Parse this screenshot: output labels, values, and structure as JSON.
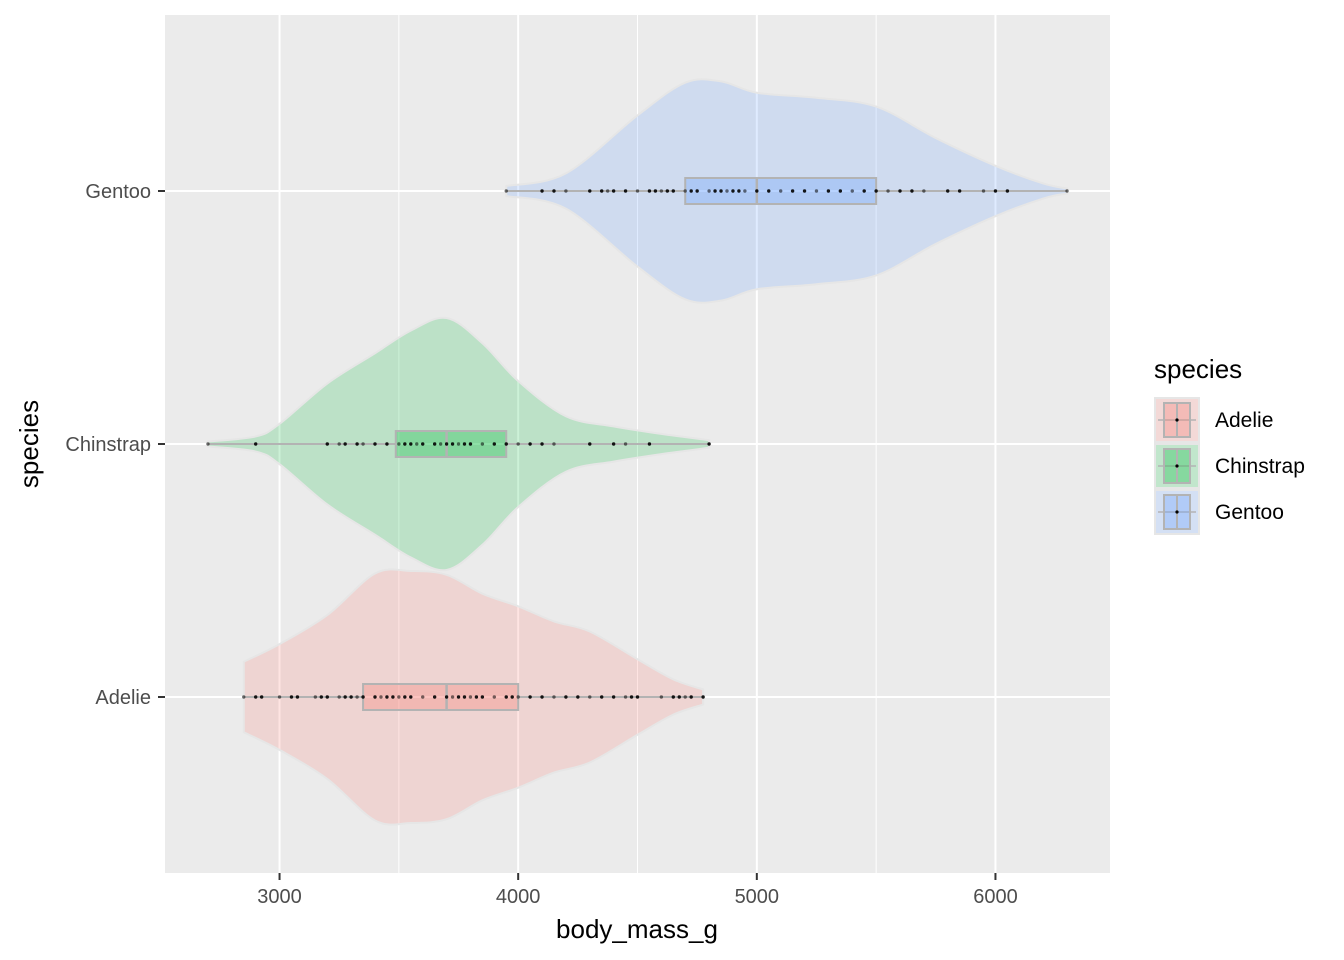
{
  "chart_data": {
    "type": "violin",
    "xlabel": "body_mass_g",
    "ylabel": "species",
    "xlim": [
      2520,
      6480
    ],
    "x_ticks": [
      3000,
      4000,
      5000,
      6000
    ],
    "x_tick_labels": [
      "3000",
      "4000",
      "5000",
      "6000"
    ],
    "grid": true,
    "legend": {
      "title": "species",
      "placement": "right",
      "entries": [
        "Adelie",
        "Chinstrap",
        "Gentoo"
      ]
    },
    "categories": [
      "Adelie",
      "Chinstrap",
      "Gentoo"
    ],
    "series": [
      {
        "name": "Adelie",
        "color": "#F8766D",
        "min": 2850,
        "q1": 3350,
        "median": 3700,
        "q3": 4000,
        "max": 4775,
        "density": [
          [
            2850,
            0.28
          ],
          [
            3000,
            0.42
          ],
          [
            3200,
            0.65
          ],
          [
            3400,
            0.98
          ],
          [
            3550,
            1.0
          ],
          [
            3700,
            0.97
          ],
          [
            3850,
            0.82
          ],
          [
            4000,
            0.72
          ],
          [
            4150,
            0.6
          ],
          [
            4300,
            0.52
          ],
          [
            4500,
            0.3
          ],
          [
            4650,
            0.14
          ],
          [
            4775,
            0.06
          ]
        ],
        "points": [
          2850,
          2900,
          2925,
          3000,
          3050,
          3075,
          3150,
          3175,
          3200,
          3250,
          3275,
          3300,
          3325,
          3350,
          3400,
          3425,
          3450,
          3475,
          3500,
          3525,
          3550,
          3600,
          3650,
          3700,
          3725,
          3750,
          3775,
          3800,
          3825,
          3850,
          3900,
          3950,
          3975,
          4000,
          4050,
          4100,
          4150,
          4200,
          4250,
          4300,
          4350,
          4400,
          4450,
          4475,
          4500,
          4600,
          4650,
          4675,
          4700,
          4725,
          4775
        ]
      },
      {
        "name": "Chinstrap",
        "color": "#00BA38",
        "min": 2700,
        "q1": 3487,
        "median": 3700,
        "q3": 3950,
        "max": 4800,
        "density": [
          [
            2700,
            0.02
          ],
          [
            2900,
            0.06
          ],
          [
            3000,
            0.16
          ],
          [
            3200,
            0.48
          ],
          [
            3400,
            0.72
          ],
          [
            3550,
            0.9
          ],
          [
            3700,
            1.0
          ],
          [
            3850,
            0.8
          ],
          [
            4000,
            0.5
          ],
          [
            4200,
            0.22
          ],
          [
            4400,
            0.14
          ],
          [
            4600,
            0.08
          ],
          [
            4800,
            0.03
          ]
        ],
        "points": [
          2700,
          2900,
          3200,
          3250,
          3275,
          3325,
          3350,
          3400,
          3450,
          3500,
          3525,
          3550,
          3575,
          3600,
          3650,
          3675,
          3700,
          3725,
          3750,
          3775,
          3800,
          3850,
          3900,
          3950,
          4000,
          4050,
          4100,
          4150,
          4300,
          4400,
          4450,
          4550,
          4800
        ]
      },
      {
        "name": "Gentoo",
        "color": "#619CFF",
        "min": 3950,
        "q1": 4700,
        "median": 5000,
        "q3": 5500,
        "max": 6300,
        "density": [
          [
            3950,
            0.04
          ],
          [
            4200,
            0.14
          ],
          [
            4500,
            0.6
          ],
          [
            4700,
            0.86
          ],
          [
            4850,
            0.87
          ],
          [
            5000,
            0.78
          ],
          [
            5250,
            0.74
          ],
          [
            5500,
            0.67
          ],
          [
            5750,
            0.42
          ],
          [
            6000,
            0.2
          ],
          [
            6200,
            0.06
          ],
          [
            6300,
            0.02
          ]
        ],
        "points": [
          3950,
          4100,
          4150,
          4200,
          4300,
          4350,
          4375,
          4400,
          4450,
          4500,
          4550,
          4575,
          4600,
          4625,
          4650,
          4700,
          4725,
          4750,
          4800,
          4825,
          4850,
          4875,
          4900,
          4925,
          4950,
          5000,
          5050,
          5100,
          5150,
          5200,
          5250,
          5300,
          5350,
          5400,
          5450,
          5500,
          5550,
          5600,
          5650,
          5700,
          5800,
          5850,
          5950,
          6000,
          6050,
          6300
        ]
      }
    ]
  }
}
